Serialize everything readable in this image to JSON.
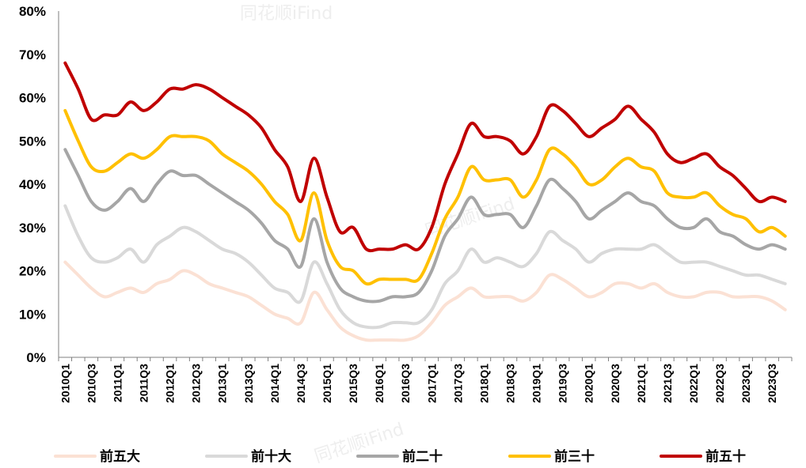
{
  "watermark": "同花顺iFind",
  "chart_data": {
    "type": "line",
    "title": "",
    "xlabel": "",
    "ylabel": "",
    "ylim": [
      0,
      80
    ],
    "y_ticks": [
      "0%",
      "10%",
      "20%",
      "30%",
      "40%",
      "50%",
      "60%",
      "70%",
      "80%"
    ],
    "grid": false,
    "legend_position": "bottom",
    "x": [
      "2010Q1",
      "2010Q2",
      "2010Q3",
      "2010Q4",
      "2011Q1",
      "2011Q2",
      "2011Q3",
      "2011Q4",
      "2012Q1",
      "2012Q2",
      "2012Q3",
      "2012Q4",
      "2013Q1",
      "2013Q2",
      "2013Q3",
      "2013Q4",
      "2014Q1",
      "2014Q2",
      "2014Q3",
      "2014Q4",
      "2015Q1",
      "2015Q2",
      "2015Q3",
      "2015Q4",
      "2016Q1",
      "2016Q2",
      "2016Q3",
      "2016Q4",
      "2017Q1",
      "2017Q2",
      "2017Q3",
      "2017Q4",
      "2018Q1",
      "2018Q2",
      "2018Q3",
      "2018Q4",
      "2019Q1",
      "2019Q2",
      "2019Q3",
      "2019Q4",
      "2020Q1",
      "2020Q2",
      "2020Q3",
      "2020Q4",
      "2021Q1",
      "2021Q2",
      "2021Q3",
      "2021Q4",
      "2022Q1",
      "2022Q2",
      "2022Q3",
      "2022Q4",
      "2023Q1",
      "2023Q2",
      "2023Q3",
      "2023Q4"
    ],
    "x_tick_labels": [
      "2010Q1",
      "2010Q3",
      "2011Q1",
      "2011Q3",
      "2012Q1",
      "2012Q3",
      "2013Q1",
      "2013Q3",
      "2014Q1",
      "2014Q3",
      "2015Q1",
      "2015Q3",
      "2016Q1",
      "2016Q3",
      "2017Q1",
      "2017Q3",
      "2018Q1",
      "2018Q3",
      "2019Q1",
      "2019Q3",
      "2020Q1",
      "2020Q3",
      "2021Q1",
      "2021Q3",
      "2022Q1",
      "2022Q3",
      "2023Q1",
      "2023Q3"
    ],
    "series": [
      {
        "name": "前五大",
        "color": "#fbe1d4",
        "values": [
          22,
          19,
          16,
          14,
          15,
          16,
          15,
          17,
          18,
          20,
          19,
          17,
          16,
          15,
          14,
          12,
          10,
          9,
          8,
          15,
          11,
          7,
          5,
          4,
          4,
          4,
          4,
          5,
          8,
          12,
          14,
          16,
          14,
          14,
          14,
          13,
          15,
          19,
          18,
          16,
          14,
          15,
          17,
          17,
          16,
          17,
          15,
          14,
          14,
          15,
          15,
          14,
          14,
          14,
          13,
          11
        ]
      },
      {
        "name": "前十大",
        "color": "#d9d9d9",
        "values": [
          35,
          28,
          23,
          22,
          23,
          25,
          22,
          26,
          28,
          30,
          29,
          27,
          25,
          24,
          22,
          19,
          16,
          15,
          13,
          22,
          17,
          11,
          8,
          7,
          7,
          8,
          8,
          8,
          11,
          17,
          20,
          25,
          22,
          23,
          22,
          21,
          24,
          29,
          27,
          25,
          22,
          24,
          25,
          25,
          25,
          26,
          24,
          22,
          22,
          22,
          21,
          20,
          19,
          19,
          18,
          17
        ]
      },
      {
        "name": "前二十",
        "color": "#a6a6a6",
        "values": [
          48,
          42,
          36,
          34,
          36,
          39,
          36,
          40,
          43,
          42,
          42,
          40,
          38,
          36,
          34,
          31,
          27,
          25,
          21,
          32,
          22,
          16,
          14,
          13,
          13,
          14,
          14,
          15,
          20,
          28,
          32,
          37,
          33,
          33,
          33,
          30,
          35,
          41,
          39,
          36,
          32,
          34,
          36,
          38,
          36,
          35,
          32,
          30,
          30,
          32,
          29,
          28,
          26,
          25,
          26,
          25
        ]
      },
      {
        "name": "前三十",
        "color": "#ffc000",
        "values": [
          57,
          50,
          44,
          43,
          45,
          47,
          46,
          48,
          51,
          51,
          51,
          50,
          47,
          45,
          43,
          40,
          36,
          33,
          27,
          38,
          27,
          21,
          20,
          17,
          18,
          18,
          18,
          18,
          24,
          32,
          37,
          44,
          41,
          41,
          41,
          37,
          41,
          48,
          47,
          44,
          40,
          41,
          44,
          46,
          44,
          43,
          38,
          37,
          37,
          38,
          35,
          33,
          32,
          29,
          30,
          28
        ]
      },
      {
        "name": "前五十",
        "color": "#c00000",
        "values": [
          68,
          62,
          55,
          56,
          56,
          59,
          57,
          59,
          62,
          62,
          63,
          62,
          60,
          58,
          56,
          53,
          48,
          44,
          36,
          46,
          37,
          29,
          30,
          25,
          25,
          25,
          26,
          25,
          30,
          40,
          47,
          54,
          51,
          51,
          50,
          47,
          51,
          58,
          57,
          54,
          51,
          53,
          55,
          58,
          55,
          52,
          47,
          45,
          46,
          47,
          44,
          42,
          39,
          36,
          37,
          36
        ]
      }
    ]
  }
}
